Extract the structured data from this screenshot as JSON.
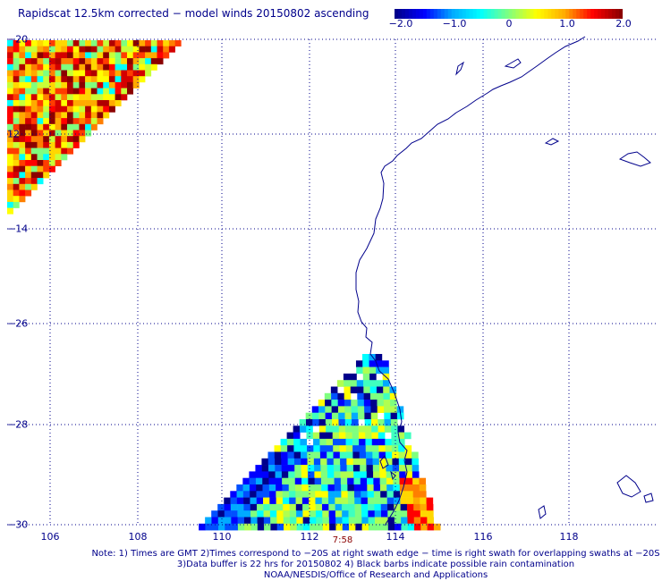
{
  "title": "Rapidscat 12.5km corrected − model winds 20150802 ascending",
  "colorbar": {
    "ticks": [
      "−2.0",
      "−1.0",
      "0",
      "1.0",
      "2.0"
    ],
    "values": [
      -2.0,
      -1.0,
      0.0,
      1.0,
      2.0
    ],
    "colors": [
      "#00008b",
      "#0000ff",
      "#00aaff",
      "#00ffff",
      "#7fff7f",
      "#ffff00",
      "#ffaa00",
      "#ff0000",
      "#8b0000"
    ]
  },
  "map": {
    "lon_ticks": [
      "106",
      "108",
      "110",
      "112",
      "114",
      "116",
      "118"
    ],
    "lat_ticks": [
      "−20",
      "−22",
      "−24",
      "−26",
      "−28",
      "−30"
    ],
    "lat_labels_visible": [
      "−20",
      "12",
      "−14",
      "−26",
      "−28",
      "−30"
    ],
    "grid": "dotted",
    "coastline_color": "#00008b"
  },
  "time_label": "7:58",
  "notes": [
    "Note: 1) Times are GMT 2)Times correspond to −20S at right swath edge − time is right swath for overlapping swaths at −20S",
    "3)Data buffer is 22 hrs for 20150802 4) Black barbs indicate possible rain contamination",
    "NOAA/NESDIS/Office of Research and Applications"
  ]
}
